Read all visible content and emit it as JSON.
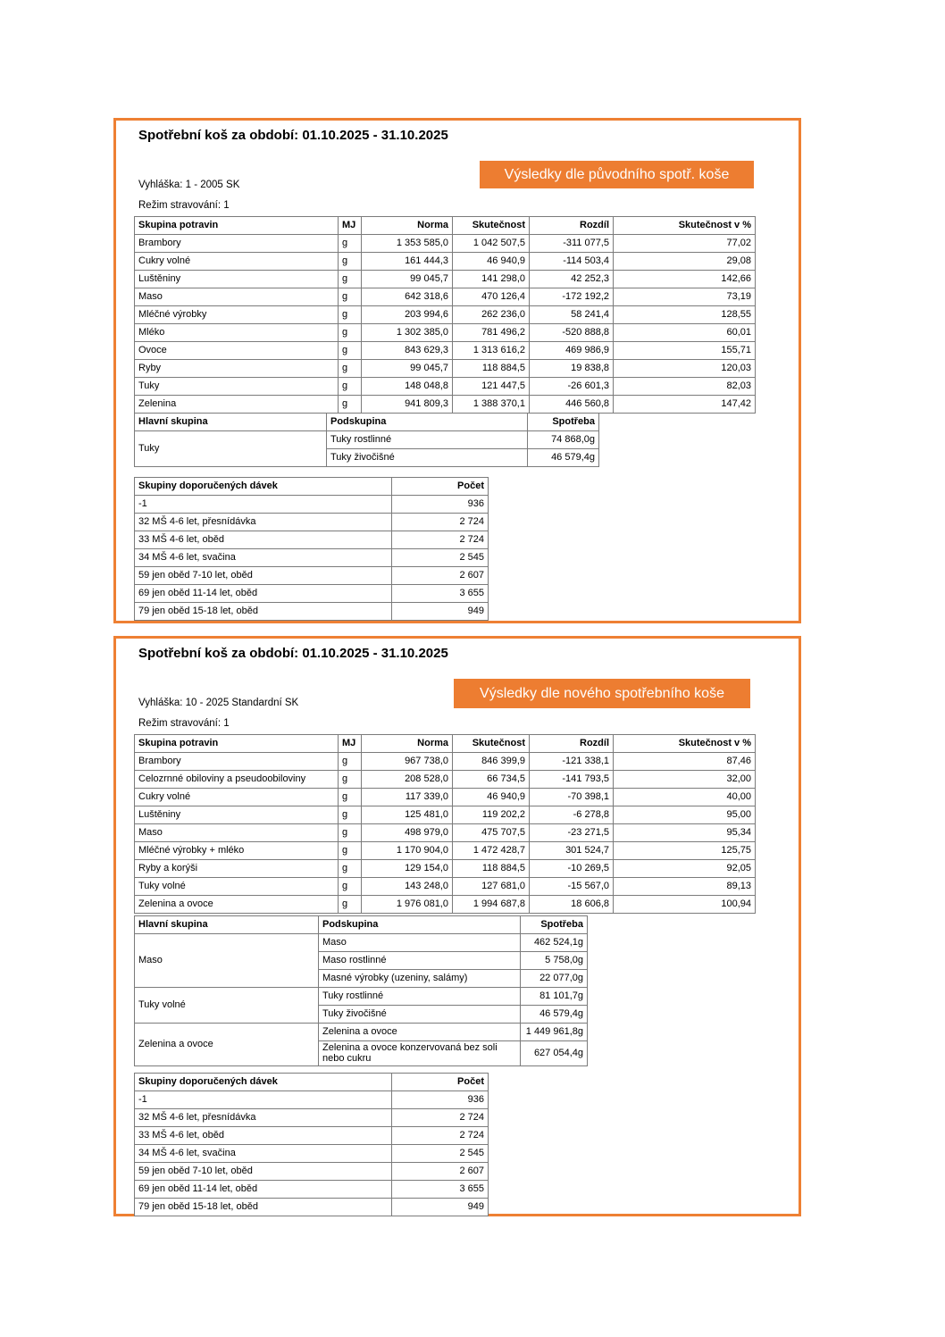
{
  "accent_color": "#ed7d31",
  "panels": [
    {
      "title": "Spotřební koš za období: 01.10.2025 - 31.10.2025",
      "badge": "Výsledky dle původního spotř. koše",
      "vyhlaska": "Vyhláška: 1 - 2005 SK",
      "rezim": "Režim stravování: 1",
      "main_table": {
        "headers": [
          "Skupina potravin",
          "MJ",
          "Norma",
          "Skutečnost",
          "Rozdíl",
          "Skutečnost v %"
        ],
        "rows": [
          [
            "Brambory",
            "g",
            "1 353 585,0",
            "1 042 507,5",
            "-311 077,5",
            "77,02"
          ],
          [
            "Cukry volné",
            "g",
            "161 444,3",
            "46 940,9",
            "-114 503,4",
            "29,08"
          ],
          [
            "Luštěniny",
            "g",
            "99 045,7",
            "141 298,0",
            "42 252,3",
            "142,66"
          ],
          [
            "Maso",
            "g",
            "642 318,6",
            "470 126,4",
            "-172 192,2",
            "73,19"
          ],
          [
            "Mléčné výrobky",
            "g",
            "203 994,6",
            "262 236,0",
            "58 241,4",
            "128,55"
          ],
          [
            "Mléko",
            "g",
            "1 302 385,0",
            "781 496,2",
            "-520 888,8",
            "60,01"
          ],
          [
            "Ovoce",
            "g",
            "843 629,3",
            "1 313 616,2",
            "469 986,9",
            "155,71"
          ],
          [
            "Ryby",
            "g",
            "99 045,7",
            "118 884,5",
            "19 838,8",
            "120,03"
          ],
          [
            "Tuky",
            "g",
            "148 048,8",
            "121 447,5",
            "-26 601,3",
            "82,03"
          ],
          [
            "Zelenina",
            "g",
            "941 809,3",
            "1 388 370,1",
            "446 560,8",
            "147,42"
          ]
        ]
      },
      "subgroup_table": {
        "headers": [
          "Hlavní skupina",
          "Podskupina",
          "Spotřeba"
        ],
        "groups": [
          {
            "name": "Tuky",
            "rows": [
              [
                "Tuky rostlinné",
                "74 868,0g"
              ],
              [
                "Tuky živočišné",
                "46 579,4g"
              ]
            ]
          }
        ]
      },
      "doses_table": {
        "headers": [
          "Skupiny doporučených dávek",
          "Počet"
        ],
        "rows": [
          [
            "-1",
            "936"
          ],
          [
            "32 MŠ 4-6 let, přesnídávka",
            "2 724"
          ],
          [
            "33 MŠ 4-6 let, oběd",
            "2 724"
          ],
          [
            "34 MŠ 4-6 let, svačina",
            "2 545"
          ],
          [
            "59 jen oběd 7-10 let, oběd",
            "2 607"
          ],
          [
            "69 jen oběd 11-14 let, oběd",
            "3 655"
          ],
          [
            "79 jen oběd 15-18 let, oběd",
            "949"
          ]
        ]
      }
    },
    {
      "title": "Spotřební koš za období: 01.10.2025 - 31.10.2025",
      "badge": "Výsledky dle nového spotřebního koše",
      "vyhlaska": "Vyhláška: 10 - 2025 Standardní SK",
      "rezim": "Režim stravování: 1",
      "main_table": {
        "headers": [
          "Skupina potravin",
          "MJ",
          "Norma",
          "Skutečnost",
          "Rozdíl",
          "Skutečnost v %"
        ],
        "rows": [
          [
            "Brambory",
            "g",
            "967 738,0",
            "846 399,9",
            "-121 338,1",
            "87,46"
          ],
          [
            "Celozrnné obiloviny a pseudoobiloviny",
            "g",
            "208 528,0",
            "66 734,5",
            "-141 793,5",
            "32,00"
          ],
          [
            "Cukry volné",
            "g",
            "117 339,0",
            "46 940,9",
            "-70 398,1",
            "40,00"
          ],
          [
            "Luštěniny",
            "g",
            "125 481,0",
            "119 202,2",
            "-6 278,8",
            "95,00"
          ],
          [
            "Maso",
            "g",
            "498 979,0",
            "475 707,5",
            "-23 271,5",
            "95,34"
          ],
          [
            "Mléčné výrobky + mléko",
            "g",
            "1 170 904,0",
            "1 472 428,7",
            "301 524,7",
            "125,75"
          ],
          [
            "Ryby a korýši",
            "g",
            "129 154,0",
            "118 884,5",
            "-10 269,5",
            "92,05"
          ],
          [
            "Tuky volné",
            "g",
            "143 248,0",
            "127 681,0",
            "-15 567,0",
            "89,13"
          ],
          [
            "Zelenina a ovoce",
            "g",
            "1 976 081,0",
            "1 994 687,8",
            "18 606,8",
            "100,94"
          ]
        ]
      },
      "subgroup_table": {
        "headers": [
          "Hlavní skupina",
          "Podskupina",
          "Spotřeba"
        ],
        "groups": [
          {
            "name": "Maso",
            "rows": [
              [
                "Maso",
                "462 524,1g"
              ],
              [
                "Maso rostlinné",
                "5 758,0g"
              ],
              [
                "Masné výrobky (uzeniny, salámy)",
                "22 077,0g"
              ]
            ]
          },
          {
            "name": "Tuky volné",
            "rows": [
              [
                "Tuky rostlinné",
                "81 101,7g"
              ],
              [
                "Tuky živočišné",
                "46 579,4g"
              ]
            ]
          },
          {
            "name": "Zelenina a ovoce",
            "rows": [
              [
                "Zelenina a ovoce",
                "1 449 961,8g"
              ],
              [
                "Zelenina a ovoce konzervovaná bez soli nebo cukru",
                "627 054,4g"
              ]
            ]
          }
        ]
      },
      "doses_table": {
        "headers": [
          "Skupiny doporučených dávek",
          "Počet"
        ],
        "rows": [
          [
            "-1",
            "936"
          ],
          [
            "32 MŠ 4-6 let, přesnídávka",
            "2 724"
          ],
          [
            "33 MŠ 4-6 let, oběd",
            "2 724"
          ],
          [
            "34 MŠ 4-6 let, svačina",
            "2 545"
          ],
          [
            "59 jen oběd 7-10 let, oběd",
            "2 607"
          ],
          [
            "69 jen oběd 11-14 let, oběd",
            "3 655"
          ],
          [
            "79 jen oběd 15-18 let, oběd",
            "949"
          ]
        ]
      }
    }
  ]
}
